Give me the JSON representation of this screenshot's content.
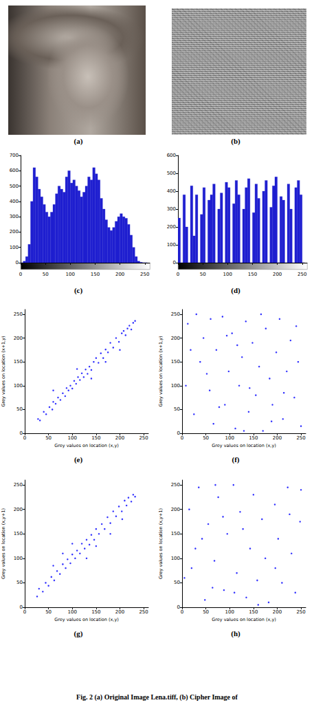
{
  "caption": "Fig. 2 (a) Original Image Lena.tiff, (b) Cipher Image of",
  "images": [
    {
      "label": "(a)"
    },
    {
      "label": "(b)"
    }
  ],
  "chart_data": [
    {
      "label": "(c)",
      "type": "histogram",
      "color": "#1f1fd0",
      "bins": [
        0,
        5,
        10,
        15,
        20,
        25,
        30,
        35,
        40,
        45,
        50,
        55,
        60,
        65,
        70,
        75,
        80,
        85,
        90,
        95,
        100,
        105,
        110,
        115,
        120,
        125,
        130,
        135,
        140,
        145,
        150,
        155,
        160,
        165,
        170,
        175,
        180,
        185,
        190,
        195,
        200,
        205,
        210,
        215,
        220,
        225,
        230,
        235,
        240,
        245,
        250,
        255
      ],
      "counts": [
        0,
        10,
        40,
        120,
        400,
        620,
        560,
        480,
        430,
        380,
        330,
        300,
        330,
        380,
        450,
        500,
        480,
        460,
        560,
        600,
        520,
        540,
        500,
        470,
        430,
        460,
        500,
        560,
        540,
        620,
        580,
        540,
        420,
        350,
        280,
        230,
        210,
        230,
        270,
        300,
        320,
        300,
        290,
        250,
        180,
        100,
        40,
        10,
        3,
        0,
        0
      ],
      "xlim": [
        0,
        260
      ],
      "xticks": [
        0,
        50,
        100,
        150,
        200,
        250
      ],
      "ylim": [
        0,
        700
      ],
      "yticks": [
        0,
        100,
        200,
        300,
        400,
        500,
        600,
        700
      ]
    },
    {
      "label": "(d)",
      "type": "histogram",
      "color": "#1f1fd0",
      "bins": [
        0,
        5,
        10,
        15,
        20,
        25,
        30,
        35,
        40,
        45,
        50,
        55,
        60,
        65,
        70,
        75,
        80,
        85,
        90,
        95,
        100,
        105,
        110,
        115,
        120,
        125,
        130,
        135,
        140,
        145,
        150,
        155,
        160,
        165,
        170,
        175,
        180,
        185,
        190,
        195,
        200,
        205,
        210,
        215,
        220,
        225,
        230,
        235,
        240,
        245,
        250,
        255
      ],
      "counts": [
        250,
        0,
        380,
        200,
        0,
        430,
        150,
        380,
        0,
        270,
        420,
        0,
        350,
        380,
        440,
        0,
        300,
        390,
        0,
        450,
        420,
        0,
        330,
        460,
        380,
        0,
        300,
        420,
        470,
        0,
        280,
        440,
        360,
        0,
        400,
        460,
        0,
        310,
        430,
        480,
        0,
        370,
        350,
        0,
        440,
        300,
        0,
        420,
        460,
        380,
        0
      ],
      "xlim": [
        0,
        260
      ],
      "xticks": [
        0,
        50,
        100,
        150,
        200,
        250
      ],
      "ylim": [
        0,
        600
      ],
      "yticks": [
        0,
        100,
        200,
        300,
        400,
        500,
        600
      ]
    },
    {
      "label": "(e)",
      "type": "scatter",
      "color": "#0000ff",
      "x_label": "Grey values on location (x,y)",
      "y_label": "Grey values on location (x+1,y)",
      "x": [
        28,
        32,
        40,
        45,
        52,
        58,
        60,
        65,
        70,
        75,
        80,
        85,
        88,
        92,
        96,
        100,
        104,
        108,
        112,
        116,
        120,
        124,
        128,
        132,
        136,
        140,
        145,
        150,
        155,
        160,
        165,
        170,
        175,
        180,
        186,
        192,
        198,
        204,
        208,
        212,
        216,
        220,
        224,
        228,
        232,
        110,
        140,
        60,
        170,
        200
      ],
      "values": [
        30,
        27,
        45,
        40,
        55,
        50,
        66,
        62,
        75,
        70,
        84,
        78,
        95,
        90,
        100,
        94,
        110,
        104,
        118,
        112,
        126,
        118,
        134,
        125,
        140,
        133,
        150,
        158,
        148,
        168,
        158,
        176,
        170,
        190,
        180,
        200,
        192,
        210,
        215,
        206,
        220,
        226,
        218,
        232,
        236,
        135,
        115,
        90,
        150,
        175
      ],
      "xlim": [
        0,
        260
      ],
      "xticks": [
        0,
        50,
        100,
        150,
        200,
        250
      ],
      "ylim": [
        0,
        260
      ],
      "yticks": [
        0,
        50,
        100,
        150,
        200,
        250
      ]
    },
    {
      "label": "(f)",
      "type": "scatter",
      "color": "#0000ff",
      "x_label": "Grey values on location (x,y)",
      "y_label": "Grey values on location (x+1,y)",
      "x": [
        12,
        25,
        38,
        45,
        58,
        66,
        72,
        85,
        90,
        98,
        105,
        112,
        120,
        126,
        134,
        140,
        148,
        155,
        162,
        170,
        176,
        184,
        190,
        198,
        205,
        212,
        220,
        228,
        236,
        244,
        250,
        8,
        18,
        30,
        52,
        78,
        94,
        116,
        142,
        166,
        188,
        214,
        240,
        60,
        130
      ],
      "values": [
        230,
        40,
        150,
        200,
        90,
        20,
        175,
        245,
        60,
        130,
        210,
        10,
        100,
        160,
        235,
        45,
        190,
        80,
        140,
        5,
        220,
        115,
        60,
        170,
        240,
        30,
        130,
        195,
        75,
        150,
        15,
        100,
        175,
        250,
        125,
        55,
        205,
        185,
        95,
        250,
        25,
        85,
        225,
        240,
        5
      ],
      "xlim": [
        0,
        260
      ],
      "xticks": [
        0,
        50,
        100,
        150,
        200,
        250
      ],
      "ylim": [
        0,
        260
      ],
      "yticks": [
        0,
        50,
        100,
        150,
        200,
        250
      ]
    },
    {
      "label": "(g)",
      "type": "scatter",
      "color": "#0000ff",
      "x_label": "Grey values on location (x,y)",
      "y_label": "Grey values on location (x,y+1)",
      "x": [
        26,
        30,
        38,
        44,
        50,
        56,
        62,
        68,
        74,
        80,
        86,
        90,
        96,
        100,
        106,
        110,
        116,
        120,
        126,
        130,
        136,
        140,
        146,
        150,
        156,
        162,
        168,
        174,
        180,
        186,
        192,
        198,
        204,
        210,
        214,
        218,
        224,
        228,
        232,
        100,
        130,
        80,
        180,
        205,
        60,
        150
      ],
      "values": [
        22,
        38,
        32,
        50,
        44,
        62,
        55,
        74,
        68,
        88,
        80,
        98,
        90,
        108,
        100,
        116,
        110,
        130,
        120,
        138,
        128,
        148,
        138,
        160,
        150,
        170,
        160,
        184,
        172,
        196,
        186,
        206,
        196,
        218,
        208,
        224,
        216,
        230,
        226,
        130,
        100,
        110,
        150,
        180,
        85,
        125
      ],
      "xlim": [
        0,
        260
      ],
      "xticks": [
        0,
        50,
        100,
        150,
        200,
        250
      ],
      "ylim": [
        0,
        260
      ],
      "yticks": [
        0,
        50,
        100,
        150,
        200,
        250
      ]
    },
    {
      "label": "(h)",
      "type": "scatter",
      "color": "#0000ff",
      "x_label": "Grey values on location (x,y)",
      "y_label": "Grey values on location (x,y+1)",
      "x": [
        5,
        15,
        28,
        35,
        48,
        55,
        68,
        76,
        88,
        95,
        108,
        115,
        122,
        135,
        143,
        150,
        158,
        168,
        175,
        182,
        195,
        202,
        210,
        222,
        230,
        238,
        248,
        20,
        42,
        64,
        86,
        128,
        160,
        196,
        226,
        250,
        110,
        70
      ],
      "values": [
        60,
        200,
        120,
        245,
        15,
        170,
        95,
        225,
        35,
        150,
        250,
        70,
        195,
        20,
        120,
        230,
        55,
        180,
        100,
        10,
        210,
        140,
        50,
        245,
        110,
        30,
        175,
        80,
        140,
        40,
        185,
        160,
        5,
        80,
        190,
        240,
        30,
        250
      ],
      "xlim": [
        0,
        260
      ],
      "xticks": [
        0,
        50,
        100,
        150,
        200,
        250
      ],
      "ylim": [
        0,
        260
      ],
      "yticks": [
        0,
        50,
        100,
        150,
        200,
        250
      ]
    }
  ]
}
